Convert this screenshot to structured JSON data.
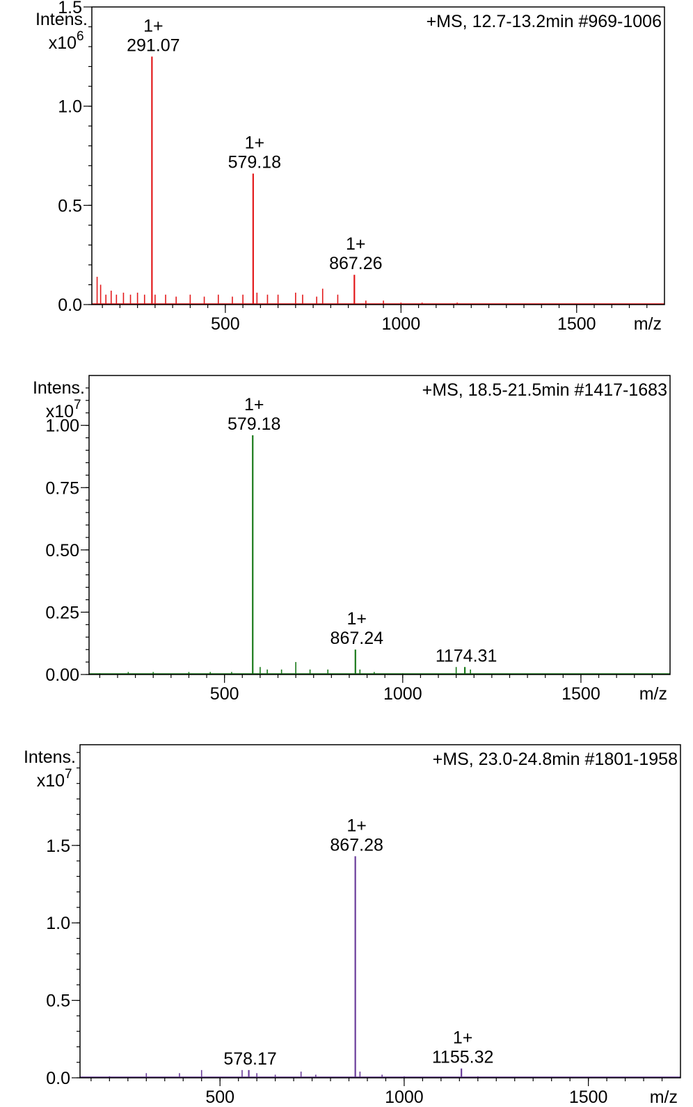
{
  "chart_data": [
    {
      "type": "line",
      "header": "+MS, 12.7-13.2min #969-1006",
      "ylabel": "Intens.",
      "multiplier": "x10",
      "multiplier_exp": "6",
      "xlabel": "m/z",
      "color": "#e31a1c",
      "xlim": [
        120,
        1750
      ],
      "ylim": [
        0,
        1.5
      ],
      "xticks": [
        500,
        1000,
        1500
      ],
      "xtick_labels": [
        "500",
        "1000",
        "1500"
      ],
      "yticks": [
        0.0,
        0.5,
        1.0,
        1.5
      ],
      "ytick_labels": [
        "0.0",
        "0.5",
        "1.0",
        "1.5"
      ],
      "peaks": [
        {
          "mz": 291.07,
          "intensity": 1.25,
          "charge": "1+",
          "label": "291.07"
        },
        {
          "mz": 579.18,
          "intensity": 0.66,
          "charge": "1+",
          "label": "579.18"
        },
        {
          "mz": 867.26,
          "intensity": 0.15,
          "charge": "1+",
          "label": "867.26"
        }
      ],
      "minor_peaks": [
        [
          135,
          0.14
        ],
        [
          145,
          0.1
        ],
        [
          160,
          0.05
        ],
        [
          175,
          0.07
        ],
        [
          190,
          0.05
        ],
        [
          210,
          0.06
        ],
        [
          230,
          0.05
        ],
        [
          250,
          0.06
        ],
        [
          270,
          0.05
        ],
        [
          300,
          0.05
        ],
        [
          330,
          0.05
        ],
        [
          360,
          0.04
        ],
        [
          400,
          0.05
        ],
        [
          440,
          0.04
        ],
        [
          480,
          0.05
        ],
        [
          520,
          0.04
        ],
        [
          550,
          0.05
        ],
        [
          590,
          0.06
        ],
        [
          620,
          0.05
        ],
        [
          650,
          0.05
        ],
        [
          700,
          0.06
        ],
        [
          720,
          0.05
        ],
        [
          760,
          0.04
        ],
        [
          777,
          0.08
        ],
        [
          820,
          0.05
        ],
        [
          900,
          0.02
        ],
        [
          950,
          0.02
        ],
        [
          1000,
          0.01
        ],
        [
          1060,
          0.01
        ],
        [
          1160,
          0.01
        ]
      ]
    },
    {
      "type": "line",
      "header": "+MS, 18.5-21.5min #1417-1683",
      "ylabel": "Intens.",
      "multiplier": "x10",
      "multiplier_exp": "7",
      "xlabel": "m/z",
      "color": "#1a7a1a",
      "xlim": [
        120,
        1750
      ],
      "ylim": [
        0,
        1.2
      ],
      "xticks": [
        500,
        1000,
        1500
      ],
      "xtick_labels": [
        "500",
        "1000",
        "1500"
      ],
      "yticks": [
        0.0,
        0.25,
        0.5,
        0.75,
        1.0
      ],
      "ytick_labels": [
        "0.00",
        "0.25",
        "0.50",
        "0.75",
        "1.00"
      ],
      "peaks": [
        {
          "mz": 579.18,
          "intensity": 0.96,
          "charge": "1+",
          "label": "579.18"
        },
        {
          "mz": 867.24,
          "intensity": 0.1,
          "charge": "1+",
          "label": "867.24"
        },
        {
          "mz": 1174.31,
          "intensity": 0.03,
          "charge": "",
          "label": "1174.31"
        }
      ],
      "minor_peaks": [
        [
          150,
          0.005
        ],
        [
          230,
          0.01
        ],
        [
          300,
          0.01
        ],
        [
          400,
          0.01
        ],
        [
          460,
          0.01
        ],
        [
          520,
          0.01
        ],
        [
          600,
          0.03
        ],
        [
          620,
          0.02
        ],
        [
          660,
          0.02
        ],
        [
          700,
          0.05
        ],
        [
          740,
          0.02
        ],
        [
          790,
          0.02
        ],
        [
          880,
          0.02
        ],
        [
          920,
          0.01
        ],
        [
          1000,
          0.005
        ],
        [
          1150,
          0.03
        ],
        [
          1190,
          0.02
        ]
      ]
    },
    {
      "type": "line",
      "header": "+MS, 23.0-24.8min #1801-1958",
      "ylabel": "Intens.",
      "multiplier": "x10",
      "multiplier_exp": "7",
      "xlabel": "m/z",
      "color": "#6a3d9a",
      "xlim": [
        120,
        1750
      ],
      "ylim": [
        0,
        2.15
      ],
      "xticks": [
        500,
        1000,
        1500
      ],
      "xtick_labels": [
        "500",
        "1000",
        "1500"
      ],
      "yticks": [
        0.0,
        0.5,
        1.0,
        1.5
      ],
      "ytick_labels": [
        "0.0",
        "0.5",
        "1.0",
        "1.5"
      ],
      "peaks": [
        {
          "mz": 867.28,
          "intensity": 1.43,
          "charge": "1+",
          "label": "867.28"
        },
        {
          "mz": 1155.32,
          "intensity": 0.06,
          "charge": "1+",
          "label": "1155.32"
        },
        {
          "mz": 578.17,
          "intensity": 0.05,
          "charge": "",
          "label": "578.17"
        }
      ],
      "minor_peaks": [
        [
          200,
          0.01
        ],
        [
          300,
          0.03
        ],
        [
          390,
          0.03
        ],
        [
          450,
          0.05
        ],
        [
          560,
          0.05
        ],
        [
          600,
          0.03
        ],
        [
          650,
          0.02
        ],
        [
          720,
          0.04
        ],
        [
          760,
          0.02
        ],
        [
          880,
          0.04
        ],
        [
          940,
          0.02
        ],
        [
          1000,
          0.01
        ],
        [
          1200,
          0.01
        ],
        [
          1400,
          0.005
        ]
      ]
    }
  ]
}
